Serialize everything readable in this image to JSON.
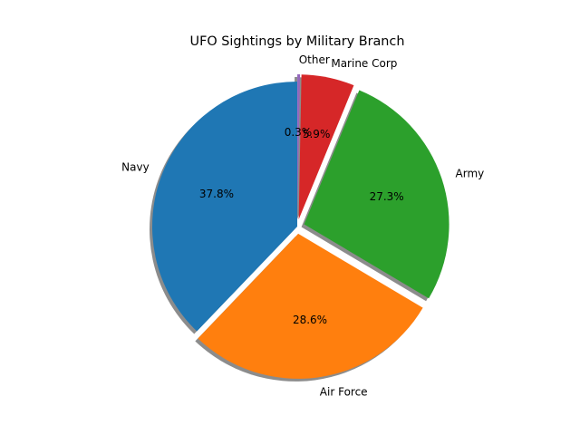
{
  "chart_data": {
    "type": "pie",
    "title": "UFO Sightings by Military Branch",
    "start_angle_deg": 90,
    "counterclock": true,
    "shadow": true,
    "legend": "none",
    "slices": [
      {
        "label": "Navy",
        "value": 37.8,
        "pct_label": "37.8%",
        "explode": 0.0,
        "color": "#1f77b4"
      },
      {
        "label": "Air Force",
        "value": 28.6,
        "pct_label": "28.6%",
        "explode": 0.05,
        "color": "#ff7f0e"
      },
      {
        "label": "Army",
        "value": 27.3,
        "pct_label": "27.3%",
        "explode": 0.05,
        "color": "#2ca02c"
      },
      {
        "label": "Marine Corp",
        "value": 5.9,
        "pct_label": "5.9%",
        "explode": 0.05,
        "color": "#d62728"
      },
      {
        "label": "Other",
        "value": 0.3,
        "pct_label": "0.3%",
        "explode": 0.05,
        "color": "#9467bd"
      }
    ]
  }
}
